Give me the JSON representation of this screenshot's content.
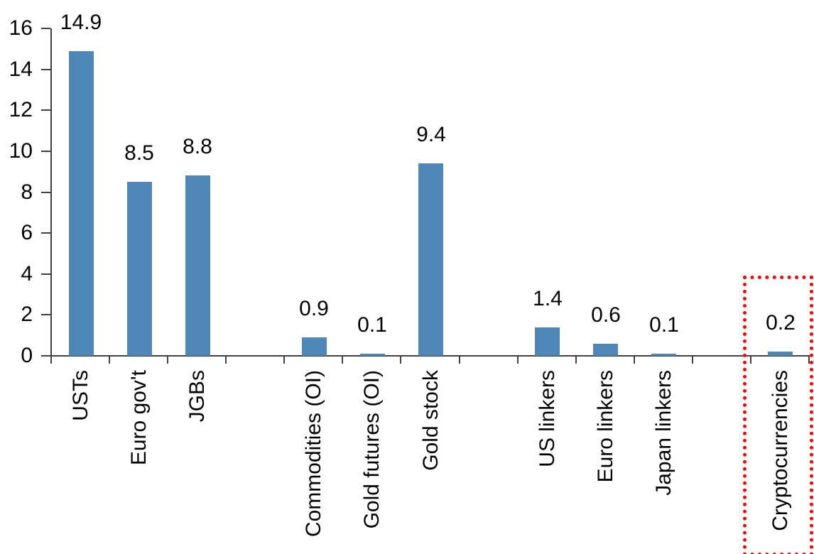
{
  "chart_data": {
    "type": "bar",
    "title": "",
    "xlabel": "",
    "ylabel": "",
    "categories": [
      "USTs",
      "Euro gov't",
      "JGBs",
      "Commodities (OI)",
      "Gold futures (OI)",
      "Gold stock",
      "US linkers",
      "Euro linkers",
      "Japan linkers",
      "Cryptocurrencies"
    ],
    "values": [
      14.9,
      8.5,
      8.8,
      0.9,
      0.1,
      9.4,
      1.4,
      0.6,
      0.1,
      0.2
    ],
    "data_labels": [
      "14.9",
      "8.5",
      "8.8",
      "0.9",
      "0.1",
      "9.4",
      "1.4",
      "0.6",
      "0.1",
      "0.2"
    ],
    "group_gaps_after": [
      2,
      5,
      8
    ],
    "y_axis": {
      "min": 0,
      "max": 16,
      "step": 2,
      "tick_labels": [
        "0",
        "2",
        "4",
        "6",
        "8",
        "10",
        "12",
        "14",
        "16"
      ]
    },
    "ylim": [
      0,
      16
    ],
    "grid": "off",
    "legend": "none",
    "bar_color": "#4E86B8",
    "axis_color": "#404040",
    "label_color": "#000000",
    "highlight": {
      "category": "Cryptocurrencies",
      "style": "red-dotted-box",
      "color": "#FF0000"
    }
  }
}
